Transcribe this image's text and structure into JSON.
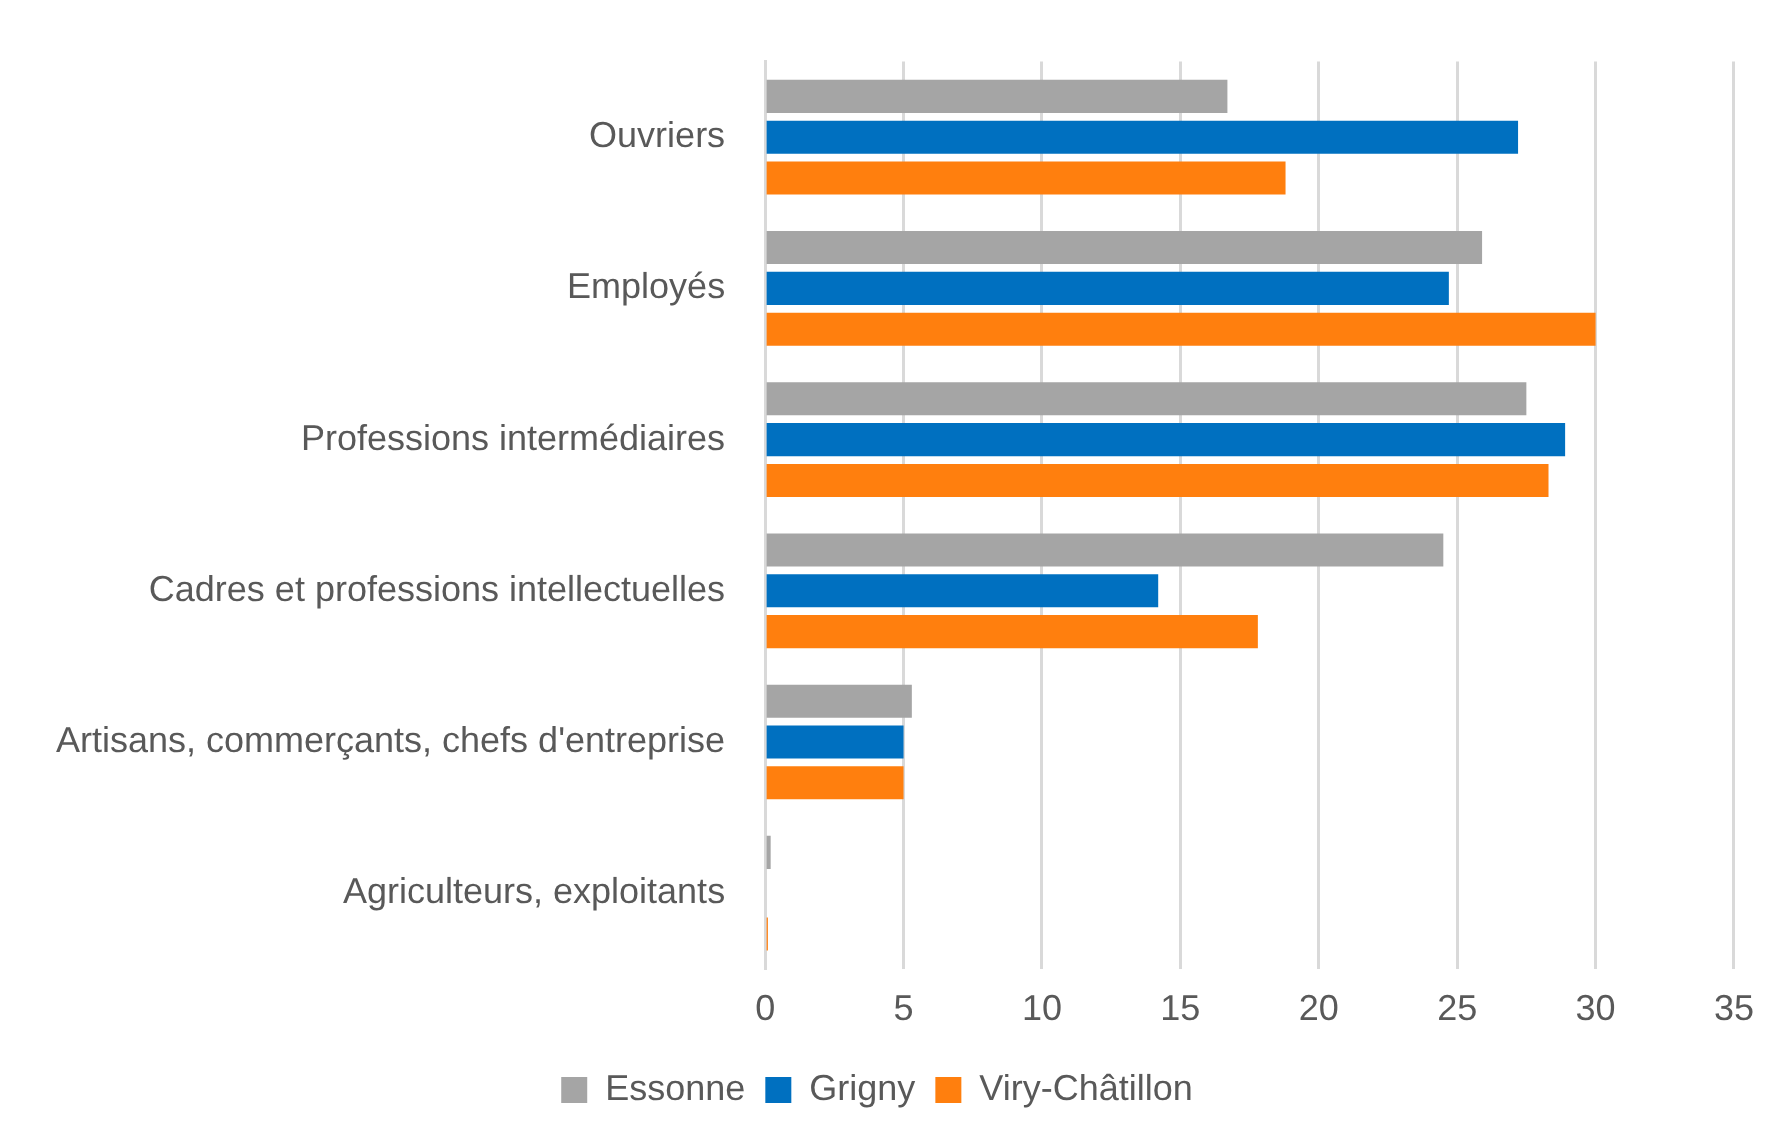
{
  "chart_data": {
    "type": "bar",
    "orientation": "horizontal",
    "categories": [
      "Ouvriers",
      "Employés",
      "Professions intermédiaires",
      "Cadres et professions intellectuelles",
      "Artisans, commerçants, chefs d'entreprise",
      "Agriculteurs, exploitants"
    ],
    "series": [
      {
        "name": "Essonne",
        "color": "#a5a5a5",
        "values": [
          16.7,
          25.9,
          27.5,
          24.5,
          5.3,
          0.2
        ]
      },
      {
        "name": "Grigny",
        "color": "#0070c0",
        "values": [
          27.2,
          24.7,
          28.9,
          14.2,
          5.0,
          0
        ]
      },
      {
        "name": "Viry-Châtillon",
        "color": "#ff7f0e",
        "values": [
          18.8,
          30.0,
          28.3,
          17.8,
          5.0,
          0.1
        ]
      }
    ],
    "xlim": [
      0,
      35
    ],
    "xticks": [
      0,
      5,
      10,
      15,
      20,
      25,
      30,
      35
    ],
    "grid": "x",
    "legend": "bottom"
  }
}
